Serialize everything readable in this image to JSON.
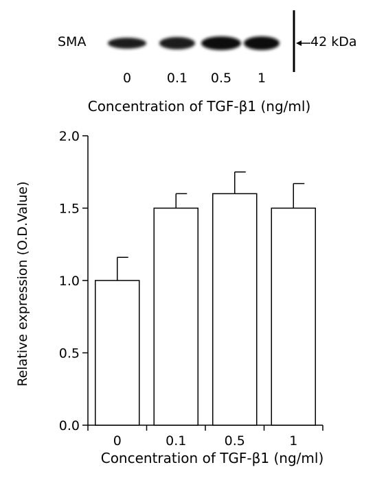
{
  "blot": {
    "protein": "SMA",
    "marker_label": "42 kDa",
    "lanes": [
      "0",
      "0.1",
      "0.5",
      "1"
    ],
    "xlabel": "Concentration of TGF-β1 (ng/ml)",
    "band_color": "#1a1a1a"
  },
  "chart_data": {
    "type": "bar",
    "categories": [
      "0",
      "0.1",
      "0.5",
      "1"
    ],
    "values": [
      1.0,
      1.5,
      1.6,
      1.5
    ],
    "error_upper": [
      0.16,
      0.1,
      0.15,
      0.17
    ],
    "xlabel": "Concentration of TGF-β1 (ng/ml)",
    "ylabel": "Relative expression (O.D.Value)",
    "ylim": [
      0,
      2.0
    ],
    "yticks": [
      "0.0",
      "0.5",
      "1.0",
      "1.5",
      "2.0"
    ],
    "grid": false,
    "bar_fill": "#ffffff",
    "bar_stroke": "#000000"
  }
}
